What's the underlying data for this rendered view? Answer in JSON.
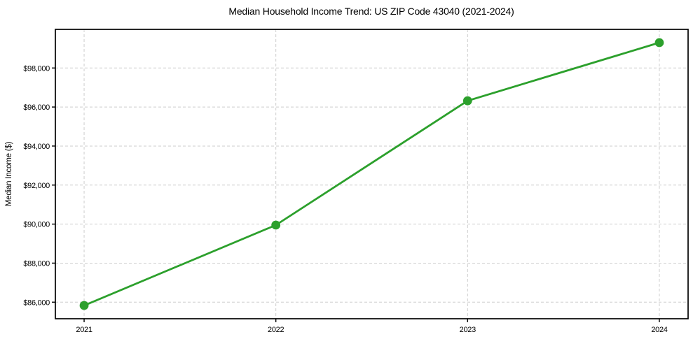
{
  "figure": {
    "background": "#ffffff",
    "border_color": "#000000",
    "grid_color": "#cdcdcd"
  },
  "chart_data": {
    "type": "line",
    "title": "Median Household Income Trend: US ZIP Code 43040 (2021-2024)",
    "xlabel": "",
    "ylabel": "Median Income ($)",
    "x": [
      2021,
      2022,
      2023,
      2024
    ],
    "values": [
      85830,
      89950,
      96320,
      99300
    ],
    "series": [
      {
        "name": "Median Income",
        "values": [
          85830,
          89950,
          96320,
          99300
        ]
      }
    ],
    "xlim": [
      2020.85,
      2024.15
    ],
    "ylim": [
      85150,
      99980
    ],
    "xticks": [
      2021,
      2022,
      2023,
      2024
    ],
    "xtick_labels": [
      "2021",
      "2022",
      "2023",
      "2024"
    ],
    "yticks": [
      86000,
      88000,
      90000,
      92000,
      94000,
      96000,
      98000
    ],
    "ytick_labels": [
      "$86,000",
      "$88,000",
      "$90,000",
      "$92,000",
      "$94,000",
      "$96,000",
      "$98,000"
    ],
    "grid": true,
    "grid_style": "dashed",
    "legend_position": "none",
    "line_color": "#2ca02c",
    "marker": "o",
    "marker_size": 6.4,
    "line_width": 2.8
  }
}
